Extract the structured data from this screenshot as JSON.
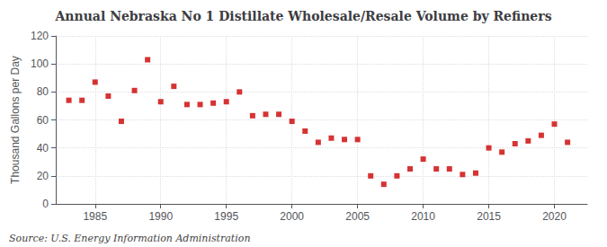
{
  "chart_data": {
    "type": "scatter",
    "title": "Annual Nebraska No 1 Distillate Wholesale/Resale Volume by Refiners",
    "ylabel": "Thousand Gallons per Day",
    "annotations": [
      "Source: U.S. Energy Information Administration"
    ],
    "x": [
      1983,
      1984,
      1985,
      1986,
      1987,
      1988,
      1989,
      1990,
      1991,
      1992,
      1993,
      1994,
      1995,
      1996,
      1997,
      1998,
      1999,
      2000,
      2001,
      2002,
      2003,
      2004,
      2005,
      2006,
      2007,
      2008,
      2009,
      2010,
      2011,
      2012,
      2013,
      2014,
      2015,
      2016,
      2017,
      2018,
      2019,
      2020,
      2021
    ],
    "values": [
      74,
      74,
      87,
      77,
      59,
      81,
      103,
      73,
      84,
      71,
      71,
      72,
      73,
      80,
      63,
      64,
      64,
      59,
      52,
      44,
      47,
      46,
      46,
      20,
      14,
      20,
      25,
      32,
      25,
      25,
      21,
      22,
      40,
      37,
      43,
      45,
      49,
      57,
      44
    ],
    "color": "#cc0000",
    "marker": "square",
    "xlim": [
      1982,
      2022.5
    ],
    "xticks": [
      1985,
      1990,
      1995,
      2000,
      2005,
      2010,
      2015,
      2020
    ],
    "ylim": [
      0,
      120
    ],
    "yticks": [
      0,
      20,
      40,
      60,
      80,
      100,
      120
    ],
    "grid": true
  }
}
